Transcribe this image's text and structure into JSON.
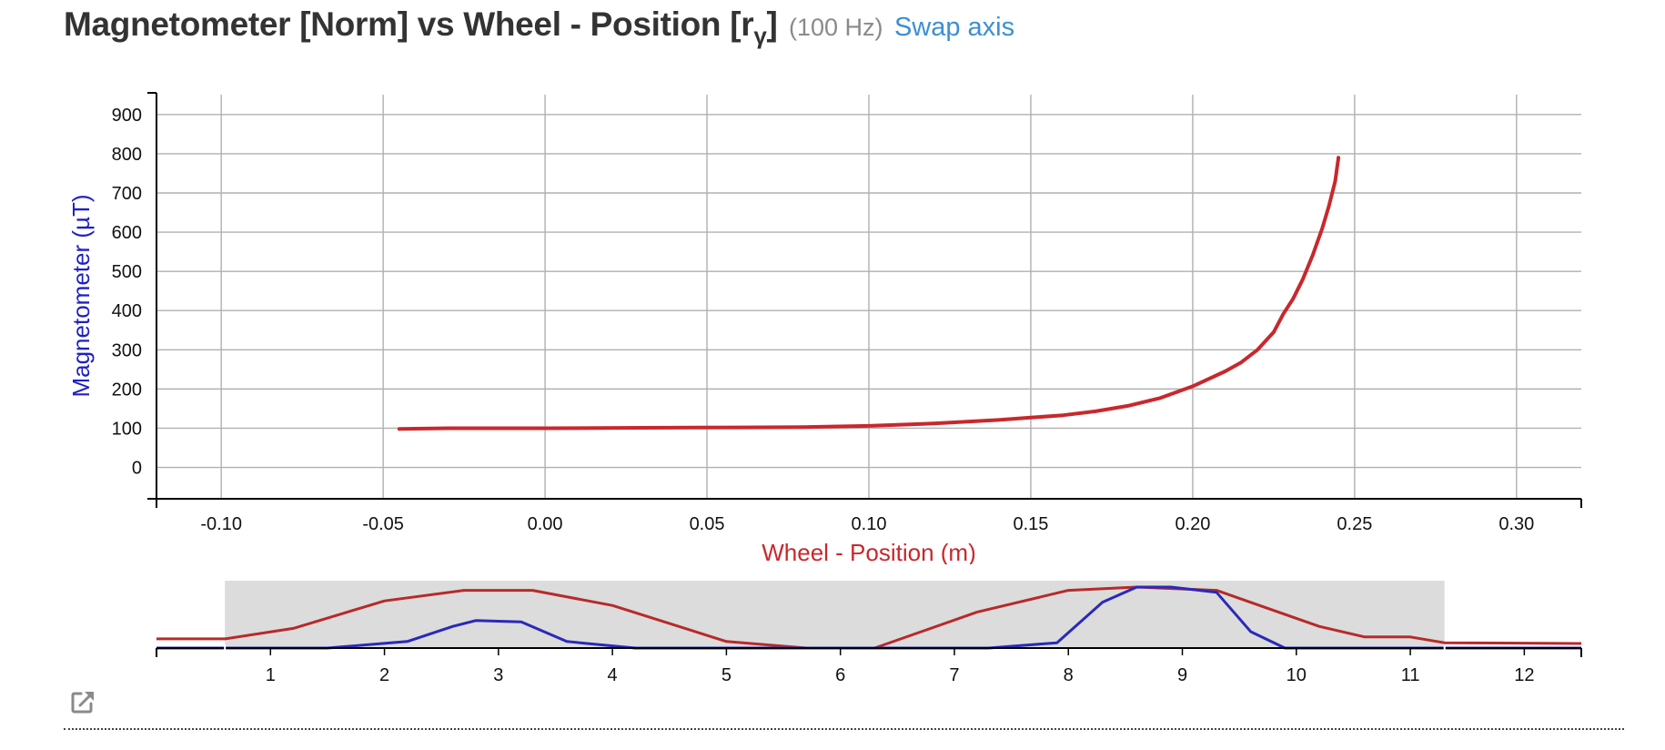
{
  "header": {
    "title_prefix": "Magnetometer [Norm] vs Wheel - Position [r",
    "title_sub": "γ",
    "title_suffix": "]",
    "rate": "(100 Hz)",
    "swap_label": "Swap axis"
  },
  "colors": {
    "series": "#c8282d",
    "mini_blue": "#2a2ab8",
    "mini_red": "#b72a2a",
    "grid": "#b0b0b0",
    "brush": "#dcdcdc"
  },
  "chart_data": [
    {
      "type": "line",
      "xlabel": "Wheel - Position (m)",
      "ylabel": "Magnetometer (µT)",
      "xlim": [
        -0.12,
        0.32
      ],
      "ylim": [
        -80,
        960
      ],
      "xticks": [
        -0.1,
        -0.05,
        0.0,
        0.05,
        0.1,
        0.15,
        0.2,
        0.25,
        0.3
      ],
      "xtick_labels": [
        "-0.10",
        "-0.05",
        "0.00",
        "0.05",
        "0.10",
        "0.15",
        "0.20",
        "0.25",
        "0.30"
      ],
      "yticks": [
        0,
        100,
        200,
        300,
        400,
        500,
        600,
        700,
        800,
        900
      ],
      "ytick_labels": [
        "0",
        "100",
        "200",
        "300",
        "400",
        "500",
        "600",
        "700",
        "800",
        "900"
      ],
      "grid": true,
      "series": [
        {
          "x": [
            -0.045,
            -0.03,
            0.0,
            0.03,
            0.06,
            0.08,
            0.1,
            0.12,
            0.14,
            0.15,
            0.16,
            0.17,
            0.18,
            0.19,
            0.2,
            0.21,
            0.215,
            0.22,
            0.225,
            0.228,
            0.231,
            0.234,
            0.237,
            0.24,
            0.242,
            0.244,
            0.245
          ],
          "y": [
            98,
            100,
            100,
            101,
            102,
            103,
            106,
            112,
            121,
            127,
            133,
            143,
            157,
            177,
            207,
            245,
            268,
            300,
            345,
            392,
            430,
            480,
            540,
            610,
            665,
            730,
            790
          ]
        }
      ]
    },
    {
      "type": "line",
      "xlim": [
        0,
        12.5
      ],
      "xticks": [
        1,
        2,
        3,
        4,
        5,
        6,
        7,
        8,
        9,
        10,
        11,
        12
      ],
      "xtick_labels": [
        "1",
        "2",
        "3",
        "4",
        "5",
        "6",
        "7",
        "8",
        "9",
        "10",
        "11",
        "12"
      ],
      "selected_range": [
        0.6,
        11.3
      ],
      "series": [
        {
          "color": "red",
          "x": [
            0,
            0.6,
            1.2,
            2.0,
            2.7,
            3.3,
            4.0,
            5.0,
            5.7,
            6.3,
            7.2,
            8.0,
            8.6,
            9.3,
            10.2,
            10.6,
            11.0,
            11.3,
            12.5
          ],
          "y": [
            0.14,
            0.14,
            0.3,
            0.72,
            0.88,
            0.88,
            0.65,
            0.1,
            0.0,
            0.0,
            0.55,
            0.88,
            0.93,
            0.88,
            0.33,
            0.17,
            0.17,
            0.08,
            0.07
          ]
        },
        {
          "color": "blue",
          "x": [
            0,
            1.5,
            2.2,
            2.6,
            2.8,
            3.2,
            3.6,
            4.2,
            7.3,
            7.9,
            8.3,
            8.6,
            8.9,
            9.3,
            9.6,
            9.9,
            12.5
          ],
          "y": [
            0.0,
            0.0,
            0.1,
            0.33,
            0.42,
            0.4,
            0.1,
            0.0,
            0.0,
            0.08,
            0.7,
            0.93,
            0.93,
            0.85,
            0.25,
            0.0,
            0.0
          ]
        }
      ]
    }
  ]
}
